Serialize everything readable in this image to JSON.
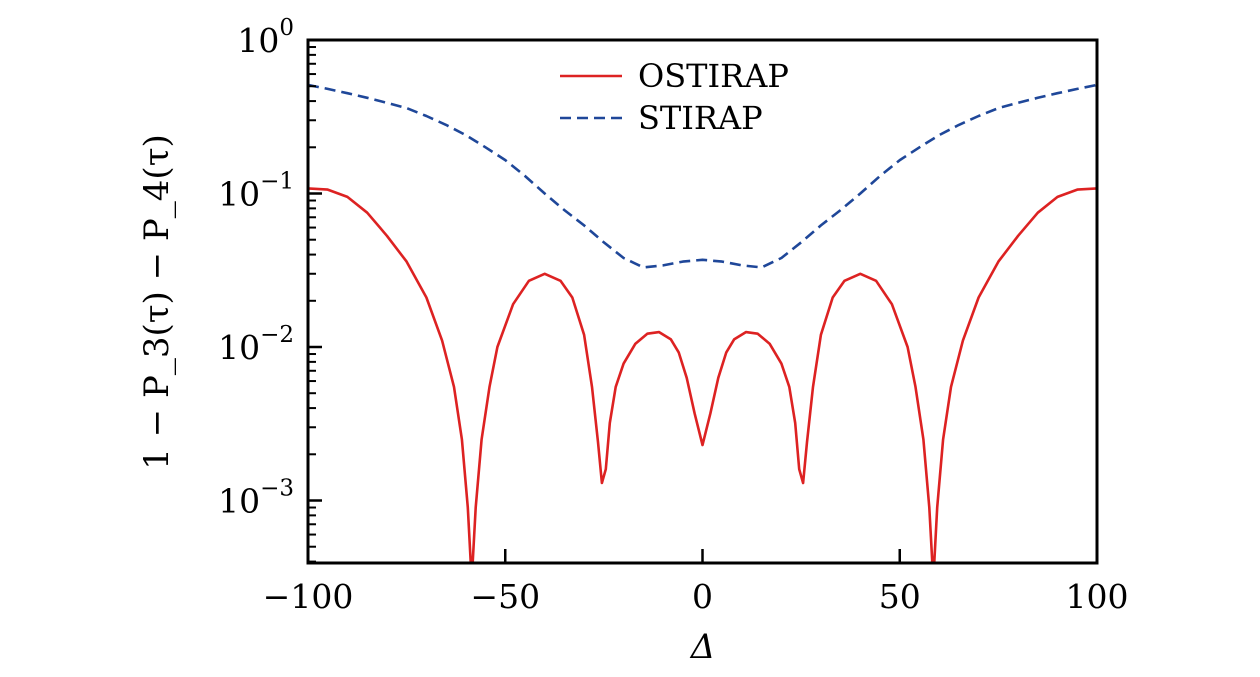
{
  "chart_data": {
    "type": "line",
    "xlabel": "Δ",
    "ylabel": "1 − P_3(τ) − P_4(τ)",
    "xlim": [
      -100,
      100
    ],
    "ylim": [
      0.00037,
      1
    ],
    "yscale": "log",
    "grid": false,
    "legend_placement": "top-center",
    "xticks": [
      -100,
      -50,
      0,
      50,
      100
    ],
    "xtick_labels": [
      "−100",
      "−50",
      "0",
      "50",
      "100"
    ],
    "yticks": [
      1,
      0.1,
      0.01,
      0.001
    ],
    "ytick_labels": [
      {
        "base": "10",
        "exp": "0"
      },
      {
        "base": "10",
        "exp": "−1"
      },
      {
        "base": "10",
        "exp": "−2"
      },
      {
        "base": "10",
        "exp": "−3"
      }
    ],
    "series": [
      {
        "name": "OSTIRAP",
        "color": "#dd2222",
        "style": "solid",
        "x": [
          -100,
          -95,
          -90,
          -85,
          -80,
          -75,
          -70,
          -66,
          -63,
          -61,
          -59.5,
          -58.5,
          -57.5,
          -56,
          -54,
          -52,
          -48,
          -44,
          -40,
          -36,
          -33,
          -30,
          -28,
          -26.5,
          -25.5,
          -24.5,
          -23.5,
          -22,
          -20,
          -17,
          -14,
          -11,
          -8,
          -6,
          -4,
          -2,
          0,
          2,
          4,
          6,
          8,
          11,
          14,
          17,
          20,
          22,
          23.5,
          24.5,
          25.5,
          26.5,
          28,
          30,
          33,
          36,
          40,
          44,
          48,
          52,
          54,
          56,
          57.5,
          58.5,
          59.5,
          61,
          63,
          66,
          70,
          75,
          80,
          85,
          90,
          95,
          100
        ],
        "y": [
          0.108,
          0.106,
          0.095,
          0.075,
          0.053,
          0.036,
          0.021,
          0.011,
          0.0055,
          0.0025,
          0.0009,
          0.0003,
          0.0009,
          0.0025,
          0.0055,
          0.01,
          0.019,
          0.027,
          0.03,
          0.027,
          0.021,
          0.012,
          0.0055,
          0.0024,
          0.0013,
          0.0016,
          0.0032,
          0.0055,
          0.0078,
          0.0105,
          0.0122,
          0.0125,
          0.0112,
          0.0092,
          0.0063,
          0.0037,
          0.0023,
          0.0037,
          0.0063,
          0.0092,
          0.0112,
          0.0125,
          0.0122,
          0.0105,
          0.0078,
          0.0055,
          0.0032,
          0.0016,
          0.0013,
          0.0024,
          0.0055,
          0.012,
          0.021,
          0.027,
          0.03,
          0.027,
          0.019,
          0.01,
          0.0055,
          0.0025,
          0.0009,
          0.0003,
          0.0009,
          0.0025,
          0.0055,
          0.011,
          0.021,
          0.036,
          0.053,
          0.075,
          0.095,
          0.106,
          0.108
        ]
      },
      {
        "name": "STIRAP",
        "color": "#1f4799",
        "style": "dashed",
        "x": [
          -100,
          -95,
          -90,
          -85,
          -80,
          -75,
          -70,
          -65,
          -60,
          -55,
          -50,
          -45,
          -40,
          -35,
          -30,
          -25,
          -20,
          -15,
          -10,
          -5,
          0,
          5,
          10,
          15,
          20,
          25,
          30,
          35,
          40,
          45,
          50,
          55,
          60,
          65,
          70,
          75,
          80,
          85,
          90,
          95,
          100
        ],
        "y": [
          0.51,
          0.48,
          0.45,
          0.42,
          0.39,
          0.36,
          0.32,
          0.28,
          0.24,
          0.2,
          0.165,
          0.13,
          0.1,
          0.078,
          0.062,
          0.048,
          0.038,
          0.033,
          0.034,
          0.036,
          0.037,
          0.036,
          0.034,
          0.033,
          0.038,
          0.048,
          0.062,
          0.078,
          0.1,
          0.13,
          0.165,
          0.2,
          0.24,
          0.28,
          0.32,
          0.36,
          0.39,
          0.42,
          0.45,
          0.48,
          0.51
        ]
      }
    ]
  }
}
